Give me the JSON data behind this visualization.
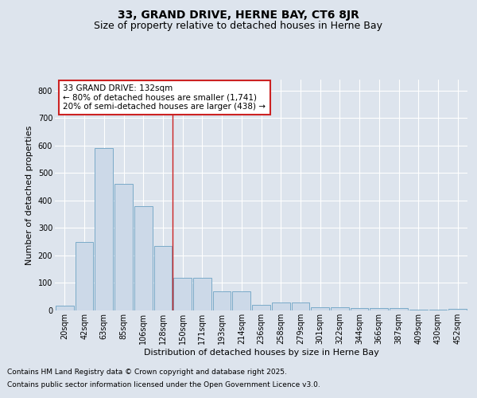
{
  "title": "33, GRAND DRIVE, HERNE BAY, CT6 8JR",
  "subtitle": "Size of property relative to detached houses in Herne Bay",
  "xlabel": "Distribution of detached houses by size in Herne Bay",
  "ylabel": "Number of detached properties",
  "categories": [
    "20sqm",
    "42sqm",
    "63sqm",
    "85sqm",
    "106sqm",
    "128sqm",
    "150sqm",
    "171sqm",
    "193sqm",
    "214sqm",
    "236sqm",
    "258sqm",
    "279sqm",
    "301sqm",
    "322sqm",
    "344sqm",
    "366sqm",
    "387sqm",
    "409sqm",
    "430sqm",
    "452sqm"
  ],
  "values": [
    18,
    250,
    590,
    460,
    380,
    235,
    120,
    120,
    70,
    70,
    20,
    30,
    30,
    12,
    12,
    10,
    8,
    10,
    3,
    3,
    5
  ],
  "bar_color": "#ccd9e8",
  "bar_edge_color": "#7aaac8",
  "vline_x": 5.5,
  "vline_color": "#cc2222",
  "annotation_text": "33 GRAND DRIVE: 132sqm\n← 80% of detached houses are smaller (1,741)\n20% of semi-detached houses are larger (438) →",
  "annotation_box_facecolor": "white",
  "annotation_box_edgecolor": "#cc2222",
  "ylim": [
    0,
    840
  ],
  "yticks": [
    0,
    100,
    200,
    300,
    400,
    500,
    600,
    700,
    800
  ],
  "background_color": "#dde4ed",
  "grid_color": "white",
  "footer_line1": "Contains HM Land Registry data © Crown copyright and database right 2025.",
  "footer_line2": "Contains public sector information licensed under the Open Government Licence v3.0.",
  "title_fontsize": 10,
  "subtitle_fontsize": 9,
  "xlabel_fontsize": 8,
  "ylabel_fontsize": 8,
  "tick_fontsize": 7,
  "annotation_fontsize": 7.5,
  "footer_fontsize": 6.5
}
